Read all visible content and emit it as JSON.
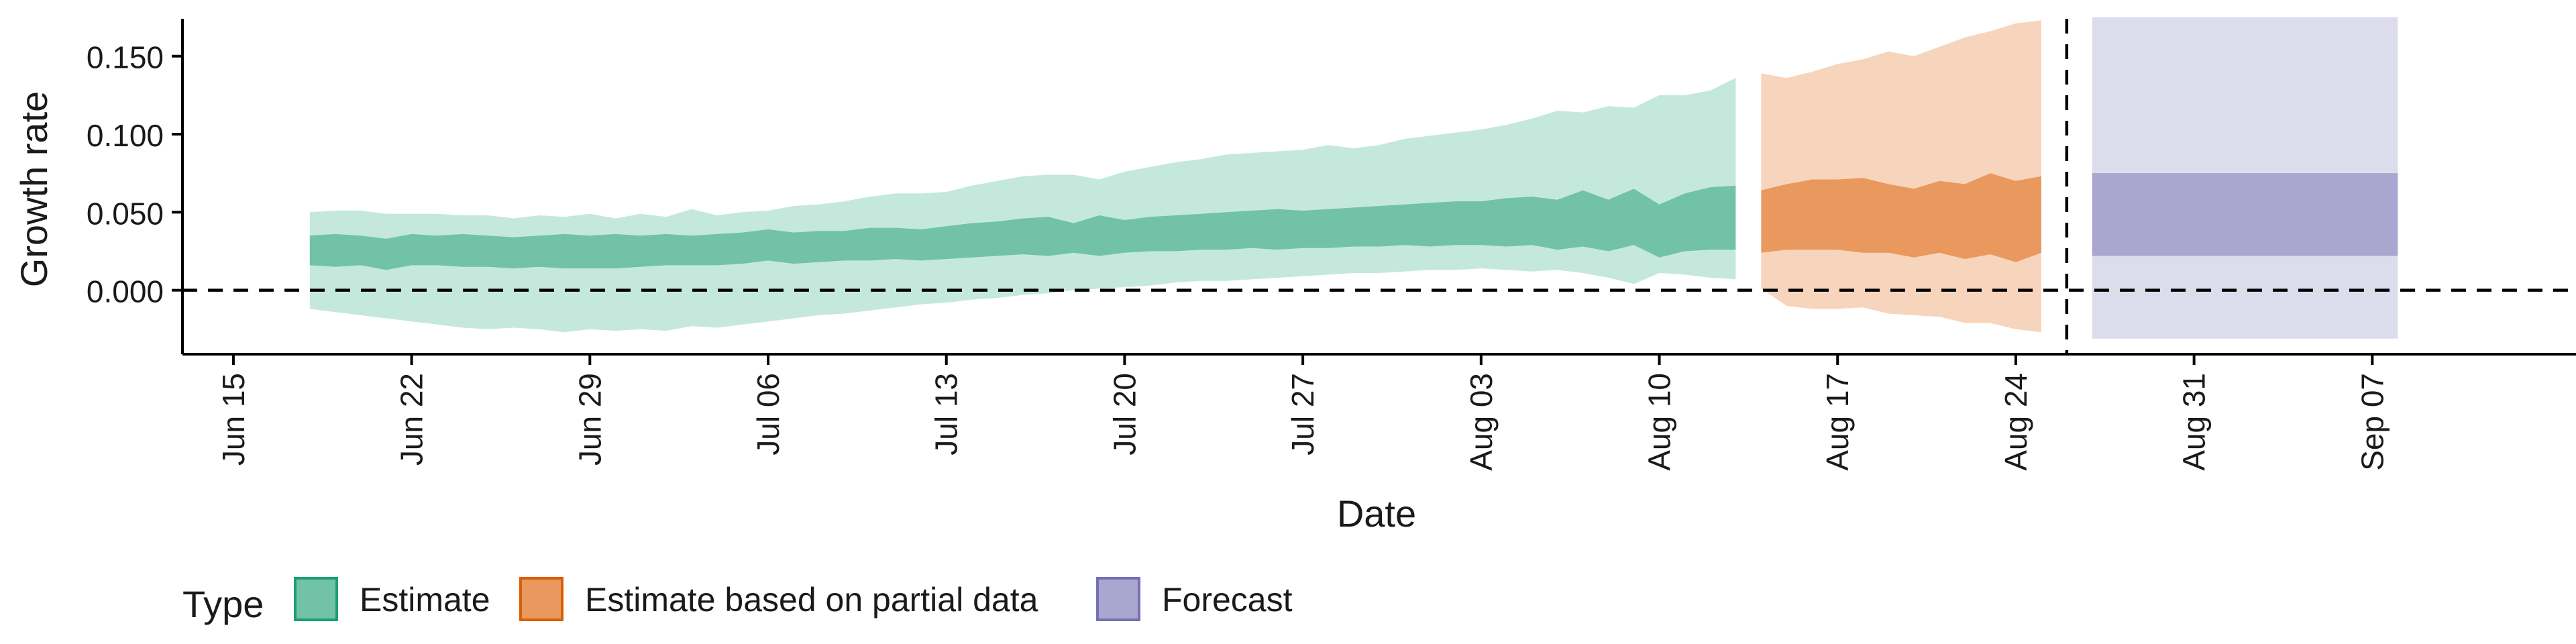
{
  "chart_data": {
    "type": "area",
    "title": "",
    "xlabel": "Date",
    "ylabel": "Growth rate",
    "ylim": [
      -0.041,
      0.186
    ],
    "xlim": [
      "2020-06-13",
      "2020-09-15"
    ],
    "x_ticks": [
      {
        "date": "2020-06-15",
        "label": "Jun 15"
      },
      {
        "date": "2020-06-22",
        "label": "Jun 22"
      },
      {
        "date": "2020-06-29",
        "label": "Jun 29"
      },
      {
        "date": "2020-07-06",
        "label": "Jul 06"
      },
      {
        "date": "2020-07-13",
        "label": "Jul 13"
      },
      {
        "date": "2020-07-20",
        "label": "Jul 20"
      },
      {
        "date": "2020-07-27",
        "label": "Jul 27"
      },
      {
        "date": "2020-08-03",
        "label": "Aug 03"
      },
      {
        "date": "2020-08-10",
        "label": "Aug 10"
      },
      {
        "date": "2020-08-17",
        "label": "Aug 17"
      },
      {
        "date": "2020-08-24",
        "label": "Aug 24"
      },
      {
        "date": "2020-08-31",
        "label": "Aug 31"
      },
      {
        "date": "2020-09-07",
        "label": "Sep 07"
      }
    ],
    "y_ticks": [
      {
        "value": 0.0,
        "label": "0.000"
      },
      {
        "value": 0.05,
        "label": "0.050"
      },
      {
        "value": 0.1,
        "label": "0.100"
      },
      {
        "value": 0.15,
        "label": "0.150"
      }
    ],
    "reference_lines": {
      "hline_y": 0.0,
      "vline_date": "2020-08-26"
    },
    "grid": false,
    "legend": {
      "title": "Type",
      "position": "bottom-left"
    },
    "series": [
      {
        "name": "Estimate",
        "color_outer": "#c5e8dd",
        "color_inner": "#72c2a8",
        "border": "#1b9e77",
        "points": [
          {
            "date": "2020-06-18",
            "lo90": -0.012,
            "lo50": 0.016,
            "hi50": 0.035,
            "hi90": 0.05
          },
          {
            "date": "2020-06-19",
            "lo90": -0.014,
            "lo50": 0.015,
            "hi50": 0.036,
            "hi90": 0.051
          },
          {
            "date": "2020-06-20",
            "lo90": -0.016,
            "lo50": 0.016,
            "hi50": 0.035,
            "hi90": 0.051
          },
          {
            "date": "2020-06-21",
            "lo90": -0.018,
            "lo50": 0.013,
            "hi50": 0.033,
            "hi90": 0.049
          },
          {
            "date": "2020-06-22",
            "lo90": -0.02,
            "lo50": 0.016,
            "hi50": 0.036,
            "hi90": 0.049
          },
          {
            "date": "2020-06-23",
            "lo90": -0.022,
            "lo50": 0.016,
            "hi50": 0.035,
            "hi90": 0.049
          },
          {
            "date": "2020-06-24",
            "lo90": -0.024,
            "lo50": 0.015,
            "hi50": 0.036,
            "hi90": 0.048
          },
          {
            "date": "2020-06-25",
            "lo90": -0.025,
            "lo50": 0.015,
            "hi50": 0.035,
            "hi90": 0.048
          },
          {
            "date": "2020-06-26",
            "lo90": -0.024,
            "lo50": 0.014,
            "hi50": 0.034,
            "hi90": 0.046
          },
          {
            "date": "2020-06-27",
            "lo90": -0.025,
            "lo50": 0.015,
            "hi50": 0.035,
            "hi90": 0.048
          },
          {
            "date": "2020-06-28",
            "lo90": -0.027,
            "lo50": 0.014,
            "hi50": 0.036,
            "hi90": 0.047
          },
          {
            "date": "2020-06-29",
            "lo90": -0.025,
            "lo50": 0.014,
            "hi50": 0.035,
            "hi90": 0.049
          },
          {
            "date": "2020-06-30",
            "lo90": -0.026,
            "lo50": 0.014,
            "hi50": 0.036,
            "hi90": 0.046
          },
          {
            "date": "2020-07-01",
            "lo90": -0.025,
            "lo50": 0.015,
            "hi50": 0.035,
            "hi90": 0.049
          },
          {
            "date": "2020-07-02",
            "lo90": -0.026,
            "lo50": 0.016,
            "hi50": 0.036,
            "hi90": 0.047
          },
          {
            "date": "2020-07-03",
            "lo90": -0.023,
            "lo50": 0.016,
            "hi50": 0.035,
            "hi90": 0.052
          },
          {
            "date": "2020-07-04",
            "lo90": -0.024,
            "lo50": 0.016,
            "hi50": 0.036,
            "hi90": 0.048
          },
          {
            "date": "2020-07-05",
            "lo90": -0.022,
            "lo50": 0.017,
            "hi50": 0.037,
            "hi90": 0.05
          },
          {
            "date": "2020-07-06",
            "lo90": -0.02,
            "lo50": 0.019,
            "hi50": 0.039,
            "hi90": 0.051
          },
          {
            "date": "2020-07-07",
            "lo90": -0.018,
            "lo50": 0.017,
            "hi50": 0.037,
            "hi90": 0.054
          },
          {
            "date": "2020-07-08",
            "lo90": -0.016,
            "lo50": 0.018,
            "hi50": 0.038,
            "hi90": 0.055
          },
          {
            "date": "2020-07-09",
            "lo90": -0.015,
            "lo50": 0.019,
            "hi50": 0.038,
            "hi90": 0.057
          },
          {
            "date": "2020-07-10",
            "lo90": -0.013,
            "lo50": 0.019,
            "hi50": 0.04,
            "hi90": 0.06
          },
          {
            "date": "2020-07-11",
            "lo90": -0.011,
            "lo50": 0.02,
            "hi50": 0.04,
            "hi90": 0.062
          },
          {
            "date": "2020-07-12",
            "lo90": -0.009,
            "lo50": 0.019,
            "hi50": 0.039,
            "hi90": 0.062
          },
          {
            "date": "2020-07-13",
            "lo90": -0.008,
            "lo50": 0.02,
            "hi50": 0.041,
            "hi90": 0.063
          },
          {
            "date": "2020-07-14",
            "lo90": -0.006,
            "lo50": 0.021,
            "hi50": 0.043,
            "hi90": 0.067
          },
          {
            "date": "2020-07-15",
            "lo90": -0.005,
            "lo50": 0.022,
            "hi50": 0.044,
            "hi90": 0.07
          },
          {
            "date": "2020-07-16",
            "lo90": -0.003,
            "lo50": 0.023,
            "hi50": 0.046,
            "hi90": 0.073
          },
          {
            "date": "2020-07-17",
            "lo90": -0.002,
            "lo50": 0.022,
            "hi50": 0.047,
            "hi90": 0.074
          },
          {
            "date": "2020-07-18",
            "lo90": 0.0,
            "lo50": 0.024,
            "hi50": 0.043,
            "hi90": 0.074
          },
          {
            "date": "2020-07-19",
            "lo90": 0.001,
            "lo50": 0.022,
            "hi50": 0.048,
            "hi90": 0.071
          },
          {
            "date": "2020-07-20",
            "lo90": 0.002,
            "lo50": 0.024,
            "hi50": 0.045,
            "hi90": 0.076
          },
          {
            "date": "2020-07-21",
            "lo90": 0.003,
            "lo50": 0.025,
            "hi50": 0.047,
            "hi90": 0.079
          },
          {
            "date": "2020-07-22",
            "lo90": 0.005,
            "lo50": 0.025,
            "hi50": 0.048,
            "hi90": 0.082
          },
          {
            "date": "2020-07-23",
            "lo90": 0.006,
            "lo50": 0.026,
            "hi50": 0.049,
            "hi90": 0.084
          },
          {
            "date": "2020-07-24",
            "lo90": 0.006,
            "lo50": 0.026,
            "hi50": 0.05,
            "hi90": 0.087
          },
          {
            "date": "2020-07-25",
            "lo90": 0.007,
            "lo50": 0.027,
            "hi50": 0.051,
            "hi90": 0.088
          },
          {
            "date": "2020-07-26",
            "lo90": 0.008,
            "lo50": 0.026,
            "hi50": 0.052,
            "hi90": 0.089
          },
          {
            "date": "2020-07-27",
            "lo90": 0.009,
            "lo50": 0.027,
            "hi50": 0.051,
            "hi90": 0.09
          },
          {
            "date": "2020-07-28",
            "lo90": 0.01,
            "lo50": 0.027,
            "hi50": 0.052,
            "hi90": 0.093
          },
          {
            "date": "2020-07-29",
            "lo90": 0.011,
            "lo50": 0.028,
            "hi50": 0.053,
            "hi90": 0.091
          },
          {
            "date": "2020-07-30",
            "lo90": 0.011,
            "lo50": 0.028,
            "hi50": 0.054,
            "hi90": 0.093
          },
          {
            "date": "2020-07-31",
            "lo90": 0.012,
            "lo50": 0.029,
            "hi50": 0.055,
            "hi90": 0.097
          },
          {
            "date": "2020-08-01",
            "lo90": 0.013,
            "lo50": 0.028,
            "hi50": 0.056,
            "hi90": 0.099
          },
          {
            "date": "2020-08-02",
            "lo90": 0.013,
            "lo50": 0.029,
            "hi50": 0.057,
            "hi90": 0.101
          },
          {
            "date": "2020-08-03",
            "lo90": 0.014,
            "lo50": 0.029,
            "hi50": 0.057,
            "hi90": 0.103
          },
          {
            "date": "2020-08-04",
            "lo90": 0.013,
            "lo50": 0.028,
            "hi50": 0.059,
            "hi90": 0.106
          },
          {
            "date": "2020-08-05",
            "lo90": 0.012,
            "lo50": 0.029,
            "hi50": 0.06,
            "hi90": 0.11
          },
          {
            "date": "2020-08-06",
            "lo90": 0.013,
            "lo50": 0.026,
            "hi50": 0.058,
            "hi90": 0.115
          },
          {
            "date": "2020-08-07",
            "lo90": 0.011,
            "lo50": 0.028,
            "hi50": 0.064,
            "hi90": 0.114
          },
          {
            "date": "2020-08-08",
            "lo90": 0.008,
            "lo50": 0.025,
            "hi50": 0.058,
            "hi90": 0.118
          },
          {
            "date": "2020-08-09",
            "lo90": 0.004,
            "lo50": 0.029,
            "hi50": 0.065,
            "hi90": 0.117
          },
          {
            "date": "2020-08-10",
            "lo90": 0.011,
            "lo50": 0.021,
            "hi50": 0.055,
            "hi90": 0.125
          },
          {
            "date": "2020-08-11",
            "lo90": 0.01,
            "lo50": 0.025,
            "hi50": 0.062,
            "hi90": 0.125
          },
          {
            "date": "2020-08-12",
            "lo90": 0.008,
            "lo50": 0.026,
            "hi50": 0.066,
            "hi90": 0.128
          },
          {
            "date": "2020-08-13",
            "lo90": 0.007,
            "lo50": 0.026,
            "hi50": 0.067,
            "hi90": 0.136
          }
        ]
      },
      {
        "name": "Estimate based on partial data",
        "color_outer": "#f6d5bc",
        "color_inner": "#e9995e",
        "border": "#d95f02",
        "points": [
          {
            "date": "2020-08-14",
            "lo90": 0.001,
            "lo50": 0.024,
            "hi50": 0.064,
            "hi90": 0.139
          },
          {
            "date": "2020-08-15",
            "lo90": -0.01,
            "lo50": 0.026,
            "hi50": 0.068,
            "hi90": 0.136
          },
          {
            "date": "2020-08-16",
            "lo90": -0.012,
            "lo50": 0.026,
            "hi50": 0.071,
            "hi90": 0.14
          },
          {
            "date": "2020-08-17",
            "lo90": -0.012,
            "lo50": 0.026,
            "hi50": 0.071,
            "hi90": 0.145
          },
          {
            "date": "2020-08-18",
            "lo90": -0.011,
            "lo50": 0.024,
            "hi50": 0.072,
            "hi90": 0.148
          },
          {
            "date": "2020-08-19",
            "lo90": -0.015,
            "lo50": 0.024,
            "hi50": 0.068,
            "hi90": 0.153
          },
          {
            "date": "2020-08-20",
            "lo90": -0.016,
            "lo50": 0.021,
            "hi50": 0.065,
            "hi90": 0.15
          },
          {
            "date": "2020-08-21",
            "lo90": -0.017,
            "lo50": 0.024,
            "hi50": 0.07,
            "hi90": 0.156
          },
          {
            "date": "2020-08-22",
            "lo90": -0.021,
            "lo50": 0.02,
            "hi50": 0.068,
            "hi90": 0.162
          },
          {
            "date": "2020-08-23",
            "lo90": -0.021,
            "lo50": 0.023,
            "hi50": 0.075,
            "hi90": 0.166
          },
          {
            "date": "2020-08-24",
            "lo90": -0.025,
            "lo50": 0.018,
            "hi50": 0.07,
            "hi90": 0.171
          },
          {
            "date": "2020-08-25",
            "lo90": -0.027,
            "lo50": 0.024,
            "hi50": 0.073,
            "hi90": 0.173
          }
        ]
      },
      {
        "name": "Forecast",
        "color_outer": "#dddcec",
        "color_inner": "#aaa6d0",
        "border": "#7570b3",
        "points": [
          {
            "date": "2020-08-27",
            "lo90": -0.031,
            "lo50": 0.022,
            "hi50": 0.075,
            "hi90": 0.175
          },
          {
            "date": "2020-09-08",
            "lo90": -0.031,
            "lo50": 0.022,
            "hi50": 0.075,
            "hi90": 0.175
          }
        ]
      }
    ]
  }
}
